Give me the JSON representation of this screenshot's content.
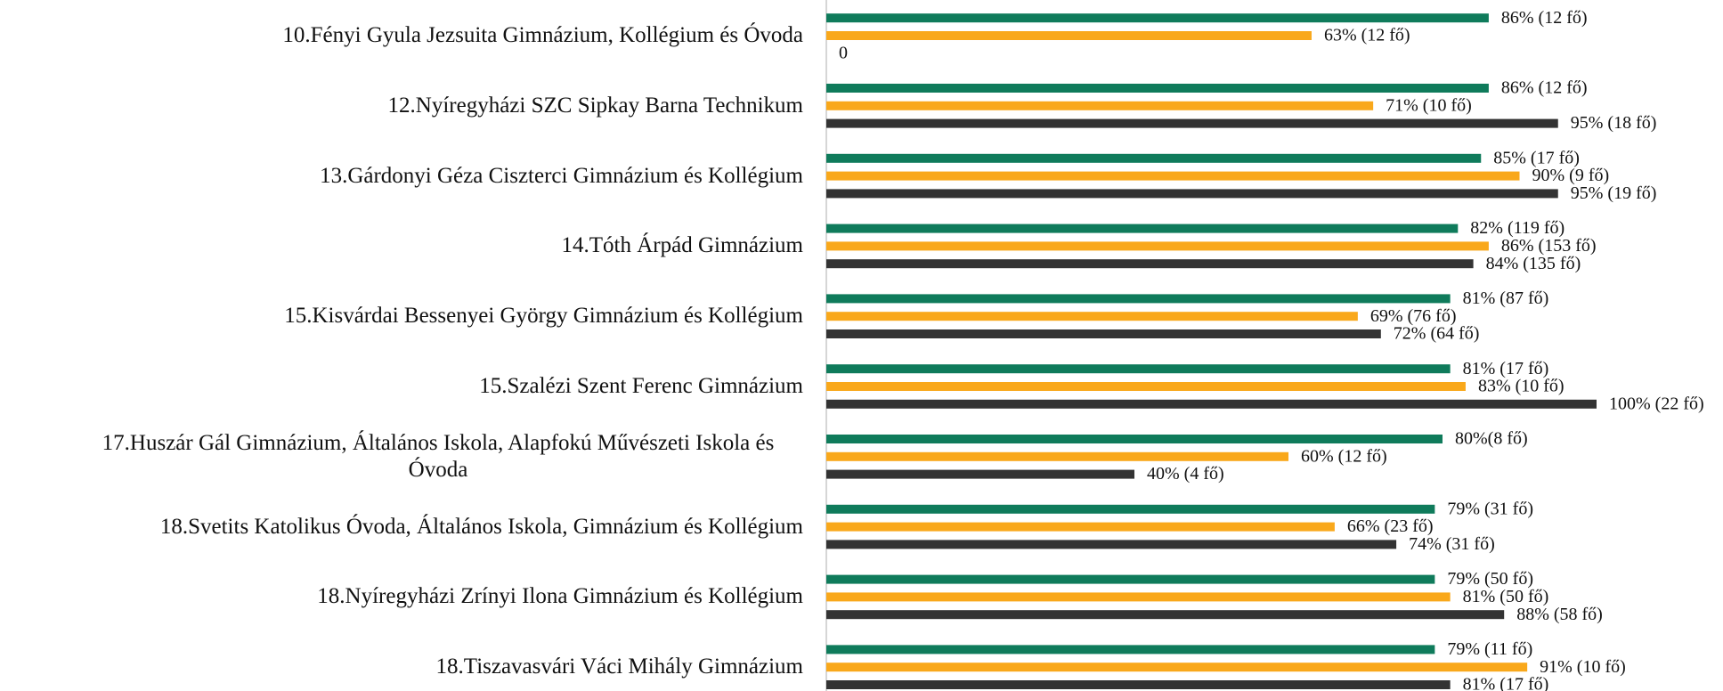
{
  "chart_data": {
    "type": "bar",
    "orientation": "horizontal",
    "categories": [
      "10.Fényi Gyula Jezsuita Gimnázium, Kollégium és Óvoda",
      "12.Nyíregyházi SZC Sipkay Barna Technikum",
      "13.Gárdonyi Géza Ciszterci Gimnázium és Kollégium",
      "14.Tóth Árpád Gimnázium",
      "15.Kisvárdai Bessenyei György Gimnázium és Kollégium",
      "15.Szalézi Szent Ferenc Gimnázium",
      "17.Huszár Gál Gimnázium, Általános Iskola, Alapfokú Művészeti Iskola és Óvoda",
      "18.Svetits Katolikus Óvoda, Általános Iskola, Gimnázium és Kollégium",
      "18.Nyíregyházi Zrínyi Ilona Gimnázium és Kollégium",
      "18.Tiszavasvári Váci Mihály Gimnázium"
    ],
    "series": [
      {
        "color": "#0f7b5b",
        "values": [
          86,
          86,
          85,
          82,
          81,
          81,
          80,
          79,
          79,
          79
        ],
        "value_labels": [
          "86% (12 fő)",
          "86% (12 fő)",
          "85% (17 fő)",
          "82% (119 fő)",
          "81% (87 fő)",
          "81% (17 fő)",
          "80%(8 fő)",
          "79% (31 fő)",
          "79% (50 fő)",
          "79% (11 fő)"
        ]
      },
      {
        "color": "#f9a81b",
        "values": [
          63,
          71,
          90,
          86,
          69,
          83,
          60,
          66,
          81,
          91
        ],
        "value_labels": [
          "63% (12 fő)",
          "71% (10 fő)",
          "90% (9 fő)",
          "86% (153 fő)",
          "69% (76 fő)",
          "83% (10 fő)",
          "60% (12 fő)",
          "66% (23 fő)",
          "81% (50 fő)",
          "91% (10 fő)"
        ]
      },
      {
        "color": "#333333",
        "values": [
          0,
          95,
          95,
          84,
          72,
          100,
          40,
          74,
          88,
          81
        ],
        "value_labels": [
          "0",
          "95% (18 fő)",
          "95% (19 fő)",
          "84% (135 fő)",
          "72% (64 fő)",
          "100% (22 fő)",
          "40% (4 fő)",
          "74% (31 fő)",
          "88% (58 fő)",
          "81% (17 fő)"
        ]
      }
    ],
    "xlim": [
      0,
      100
    ]
  }
}
